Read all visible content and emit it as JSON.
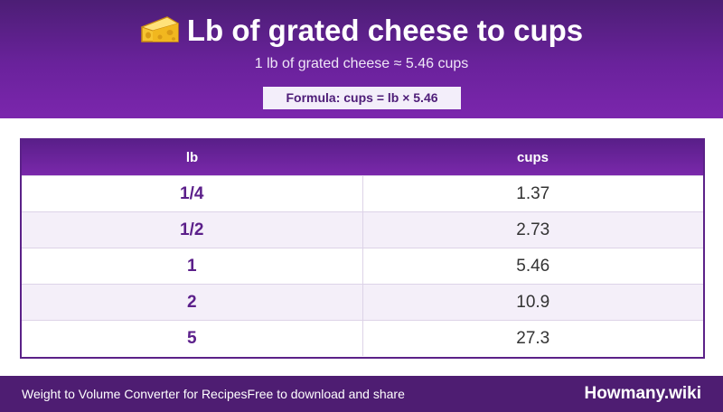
{
  "header": {
    "title_icon": "cheese-wedge-icon",
    "title": "Lb of grated cheese to cups",
    "subtitle": "1 lb of grated cheese ≈ 5.46 cups",
    "formula": "Formula: cups = lb × 5.46"
  },
  "table": {
    "columns": [
      "lb",
      "cups"
    ],
    "rows": [
      {
        "lb": "1/4",
        "cups": "1.37"
      },
      {
        "lb": "1/2",
        "cups": "2.73"
      },
      {
        "lb": "1",
        "cups": "5.46"
      },
      {
        "lb": "2",
        "cups": "10.9"
      },
      {
        "lb": "5",
        "cups": "27.3"
      }
    ]
  },
  "footer": {
    "left_text": "Weight to Volume Converter for Recipes",
    "left_text_2": "Free to download and share",
    "brand": "Howmany.wiki"
  },
  "colors": {
    "header_purple": "#6a229c",
    "footer_purple": "#4e1d72",
    "accent_text": "#5b1f8a",
    "row_alt": "#f4eff9"
  }
}
